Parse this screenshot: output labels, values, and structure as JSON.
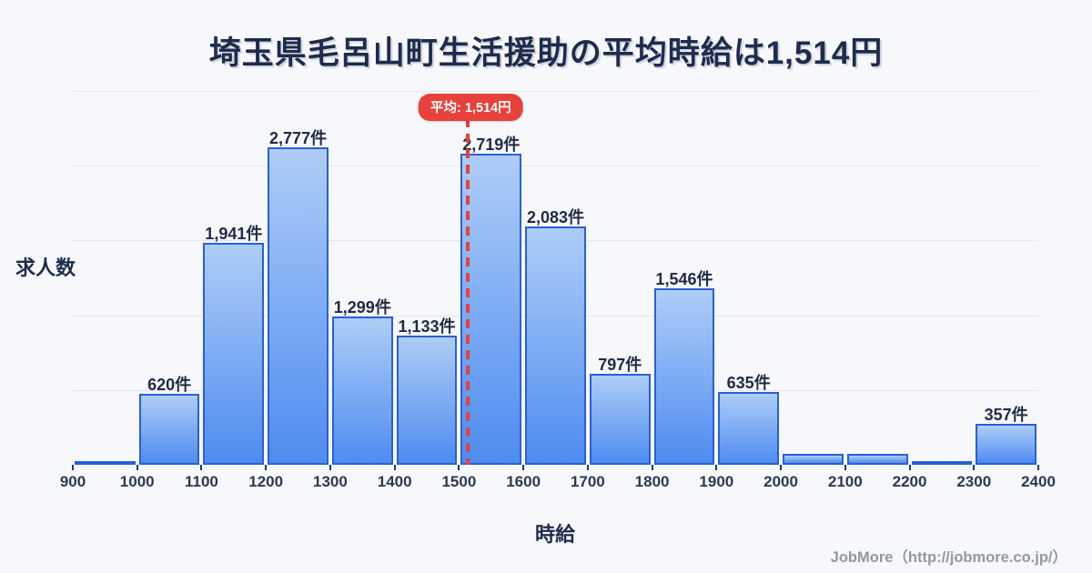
{
  "title": "埼玉県毛呂山町生活援助の平均時給は1,514円",
  "chart_data": {
    "type": "bar",
    "subtype": "histogram",
    "xlabel": "時給",
    "ylabel": "求人数",
    "bin_edges": [
      900,
      1000,
      1100,
      1200,
      1300,
      1400,
      1500,
      1600,
      1700,
      1800,
      1900,
      2000,
      2100,
      2200,
      2300,
      2400
    ],
    "bin_edge_labels": [
      "900",
      "1000",
      "1100",
      "1200",
      "1300",
      "1400",
      "1500",
      "1600",
      "1700",
      "1800",
      "1900",
      "2000",
      "2100",
      "2200",
      "2300",
      "2400"
    ],
    "values": [
      20,
      620,
      1941,
      2777,
      1299,
      1133,
      2719,
      2083,
      797,
      1546,
      635,
      95,
      95,
      18,
      357
    ],
    "bar_labels": [
      "",
      "620件",
      "1,941件",
      "2,777件",
      "1,299件",
      "1,133件",
      "2,719件",
      "2,083件",
      "797件",
      "1,546件",
      "635件",
      "",
      "",
      "",
      "357件"
    ],
    "ylim": [
      0,
      3270
    ],
    "grid": "horizontal",
    "gridline_count": 5,
    "mean": {
      "value": 1514,
      "label": "平均: 1,514円"
    },
    "colors": {
      "background": "#f7f8fb",
      "bar_fill_top": "#aecdf7",
      "bar_fill_bottom": "#4e8cf0",
      "bar_border": "#2a5fd8",
      "average_red": "#e8403b",
      "title_navy": "#1e2b4c",
      "gridline": "#e4e7ed"
    }
  },
  "footer": {
    "credit": "JobMore（http://jobmore.co.jp/）"
  }
}
